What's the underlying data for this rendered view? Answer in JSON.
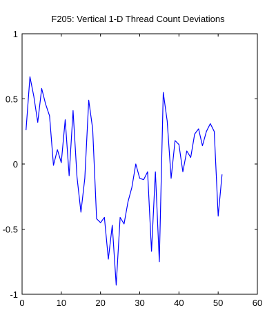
{
  "chart_data": {
    "type": "line",
    "title": "F205: Vertical 1-D Thread Count Deviations",
    "xlabel": "",
    "ylabel": "",
    "xlim": [
      0,
      60
    ],
    "ylim": [
      -1,
      1
    ],
    "xticks": [
      0,
      10,
      20,
      30,
      40,
      50,
      60
    ],
    "yticks": [
      -1,
      -0.5,
      0,
      0.5,
      1
    ],
    "xtick_labels": [
      "0",
      "10",
      "20",
      "30",
      "40",
      "50",
      "60"
    ],
    "ytick_labels": [
      "-1",
      "-0.5",
      "0",
      "0.5",
      "1"
    ],
    "grid": false,
    "legend": "none",
    "series": [
      {
        "color": "#0000ff",
        "x": [
          1,
          2,
          3,
          4,
          5,
          6,
          7,
          8,
          9,
          10,
          11,
          12,
          13,
          14,
          15,
          16,
          17,
          18,
          19,
          20,
          21,
          22,
          23,
          24,
          25,
          26,
          27,
          28,
          29,
          30,
          31,
          32,
          33,
          34,
          35,
          36,
          37,
          38,
          39,
          40,
          41,
          42,
          43,
          44,
          45,
          46,
          47,
          48,
          49,
          50,
          51
        ],
        "y": [
          0.26,
          0.67,
          0.52,
          0.32,
          0.58,
          0.46,
          0.37,
          -0.01,
          0.11,
          0.01,
          0.34,
          -0.09,
          0.41,
          -0.1,
          -0.37,
          -0.11,
          0.49,
          0.27,
          -0.42,
          -0.45,
          -0.41,
          -0.73,
          -0.47,
          -0.93,
          -0.41,
          -0.46,
          -0.29,
          -0.18,
          0.0,
          -0.11,
          -0.12,
          -0.06,
          -0.67,
          -0.06,
          -0.75,
          0.55,
          0.33,
          -0.11,
          0.18,
          0.15,
          -0.06,
          0.1,
          0.05,
          0.23,
          0.27,
          0.14,
          0.25,
          0.31,
          0.25,
          -0.4,
          -0.08
        ]
      }
    ]
  }
}
